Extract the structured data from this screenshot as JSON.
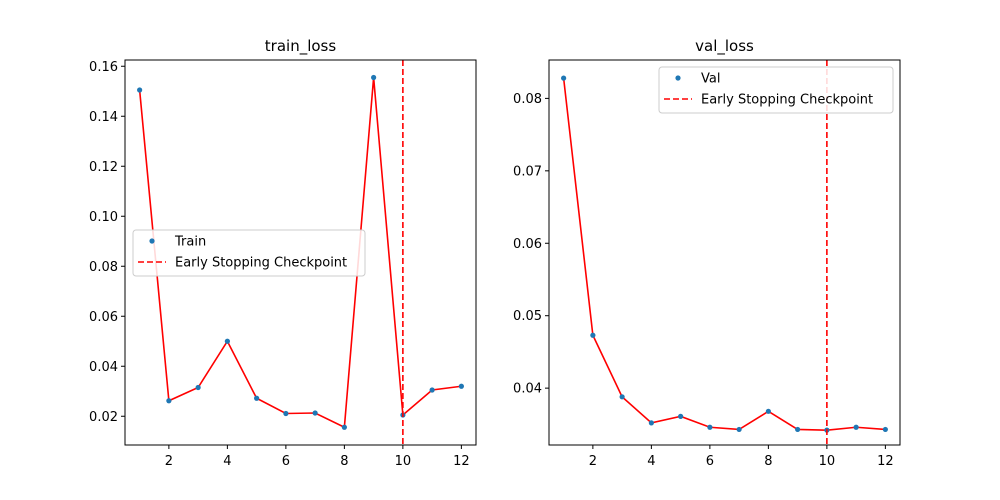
{
  "chart_data": [
    {
      "type": "line",
      "title": "train_loss",
      "xlabel": "",
      "ylabel": "",
      "xlim": [
        0.5,
        12.5
      ],
      "ylim": [
        0.0085,
        0.1625
      ],
      "x_ticks": [
        2,
        4,
        6,
        8,
        10,
        12
      ],
      "y_ticks": [
        0.02,
        0.04,
        0.06,
        0.08,
        0.1,
        0.12,
        0.14,
        0.16
      ],
      "y_tick_labels": [
        "0.02",
        "0.04",
        "0.06",
        "0.08",
        "0.10",
        "0.12",
        "0.14",
        "0.16"
      ],
      "x": [
        1,
        2,
        3,
        4,
        5,
        6,
        7,
        8,
        9,
        10,
        11,
        12
      ],
      "values": [
        0.1505,
        0.0262,
        0.0315,
        0.05,
        0.0272,
        0.0211,
        0.0213,
        0.0156,
        0.1555,
        0.0205,
        0.0305,
        0.032
      ],
      "series_name": "Train",
      "checkpoint_x": 10,
      "checkpoint_label": "Early Stopping Checkpoint",
      "legend_placement": "center-left",
      "grid": false
    },
    {
      "type": "line",
      "title": "val_loss",
      "xlabel": "",
      "ylabel": "",
      "xlim": [
        0.5,
        12.5
      ],
      "ylim": [
        0.03215,
        0.0853
      ],
      "x_ticks": [
        2,
        4,
        6,
        8,
        10,
        12
      ],
      "y_ticks": [
        0.04,
        0.05,
        0.06,
        0.07,
        0.08
      ],
      "y_tick_labels": [
        "0.04",
        "0.05",
        "0.06",
        "0.07",
        "0.08"
      ],
      "x": [
        1,
        2,
        3,
        4,
        5,
        6,
        7,
        8,
        9,
        10,
        11,
        12
      ],
      "values": [
        0.0828,
        0.0473,
        0.0388,
        0.0352,
        0.0361,
        0.0346,
        0.0343,
        0.0368,
        0.0343,
        0.0342,
        0.0346,
        0.0343
      ],
      "series_name": "Val",
      "checkpoint_x": 10,
      "checkpoint_label": "Early Stopping Checkpoint",
      "legend_placement": "upper-right",
      "grid": false
    }
  ],
  "colors": {
    "marker": "#1f77b4",
    "line": "#ff0000",
    "checkpoint": "#ff0000",
    "axis": "#000000"
  }
}
